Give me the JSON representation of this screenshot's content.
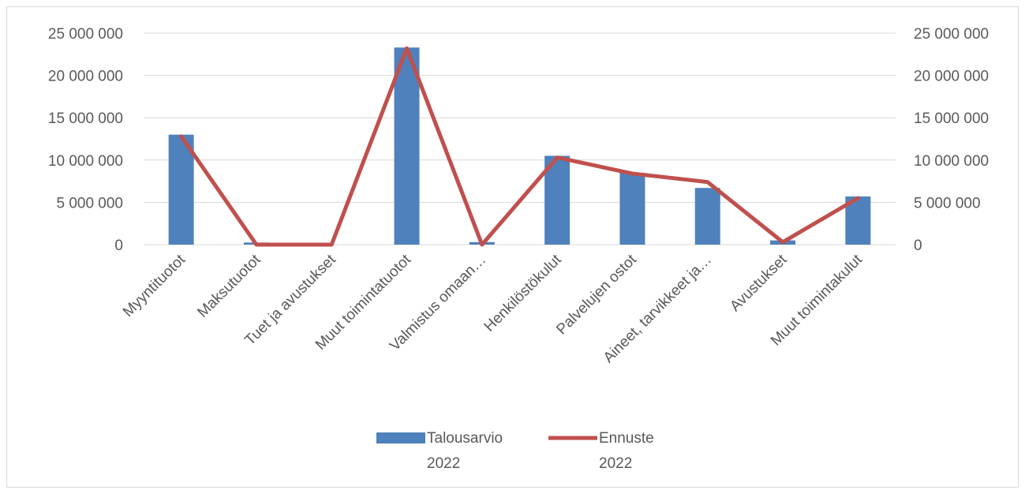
{
  "chart_data": {
    "type": "bar",
    "categories": [
      "Myyntituotot",
      "Maksutuotot",
      "Tuet ja avustukset",
      "Muut toimintatuotot",
      "Valmistus omaan…",
      "Henkilöstökulut",
      "Palvelujen ostot",
      "Aineet, tarvikkeet ja…",
      "Avustukset",
      "Muut toimintakulut"
    ],
    "series": [
      {
        "name_lines": [
          "Talousarvio",
          "2022"
        ],
        "type": "bar",
        "color": "#4f81bd",
        "axis": "left",
        "values": [
          13000000,
          250000,
          0,
          23300000,
          300000,
          10500000,
          8500000,
          6700000,
          500000,
          5700000
        ]
      },
      {
        "name_lines": [
          "Ennuste",
          "2022"
        ],
        "type": "line",
        "color": "#c0504d",
        "axis": "right",
        "values": [
          12800000,
          0,
          0,
          23200000,
          0,
          10300000,
          8400000,
          7400000,
          300000,
          5500000
        ]
      }
    ],
    "left_axis": {
      "min": 0,
      "max": 25000000,
      "ticks": [
        "0",
        "5 000 000",
        "10 000 000",
        "15 000 000",
        "20 000 000",
        "25 000 000"
      ]
    },
    "right_axis": {
      "min": 0,
      "max": 25000000,
      "ticks": [
        "0",
        "5 000 000",
        "10 000 000",
        "15 000 000",
        "20 000 000",
        "25 000 000"
      ]
    },
    "grid": true,
    "legend_position": "bottom"
  }
}
